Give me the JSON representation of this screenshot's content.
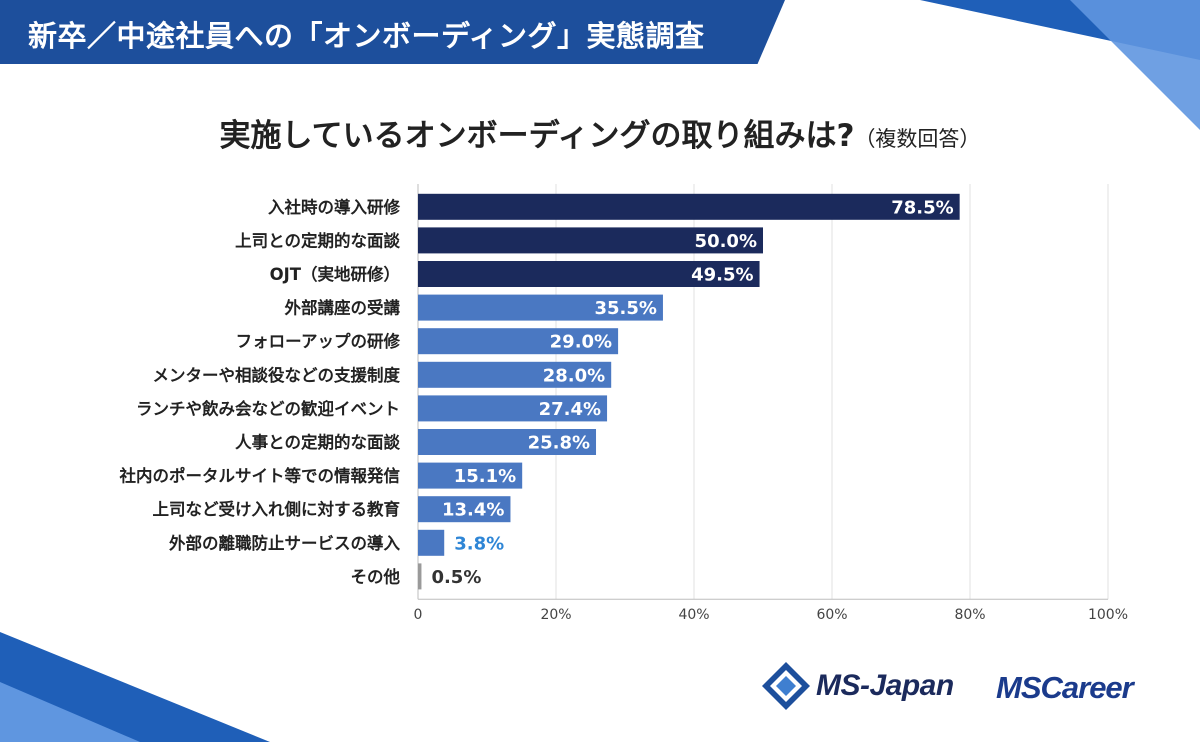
{
  "header": {
    "title": "新卒／中途社員への「オンボーディング」実態調査"
  },
  "chart_data": {
    "type": "bar",
    "orientation": "horizontal",
    "title": "実施しているオンボーディングの取り組みは?",
    "subtitle": "（複数回答）",
    "categories": [
      "入社時の導入研修",
      "上司との定期的な面談",
      "OJT（実地研修）",
      "外部講座の受講",
      "フォローアップの研修",
      "メンターや相談役などの支援制度",
      "ランチや飲み会などの歓迎イベント",
      "人事との定期的な面談",
      "社内のポータルサイト等での情報発信",
      "上司など受け入れ側に対する教育",
      "外部の離職防止サービスの導入",
      "その他"
    ],
    "values": [
      78.5,
      50.0,
      49.5,
      35.5,
      29.0,
      28.0,
      27.4,
      25.8,
      15.1,
      13.4,
      3.8,
      0.5
    ],
    "value_labels": [
      "78.5%",
      "50.0%",
      "49.5%",
      "35.5%",
      "29.0%",
      "28.0%",
      "27.4%",
      "25.8%",
      "15.1%",
      "13.4%",
      "3.8%",
      "0.5%"
    ],
    "bar_colors": [
      "#1b2a5c",
      "#1b2a5c",
      "#1b2a5c",
      "#4a78c2",
      "#4a78c2",
      "#4a78c2",
      "#4a78c2",
      "#4a78c2",
      "#4a78c2",
      "#4a78c2",
      "#4a78c2",
      "#9a9a9a"
    ],
    "xlim": [
      0,
      100
    ],
    "xticks": [
      0,
      20,
      40,
      60,
      80,
      100
    ],
    "xtick_labels": [
      "0",
      "20%",
      "40%",
      "60%",
      "80%",
      "100%"
    ],
    "grid": true,
    "outside_label_colors": {
      "3.8%": "#2f86d6",
      "0.5%": "#333333"
    }
  },
  "logos": {
    "ms_japan": "MS-Japan",
    "ms_career": "MSCareer"
  }
}
